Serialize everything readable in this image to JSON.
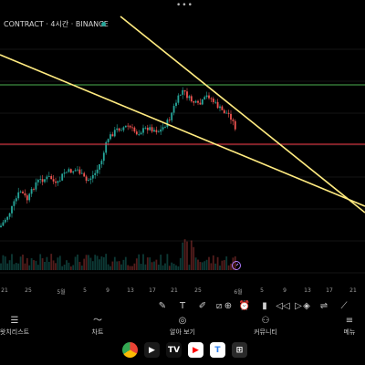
{
  "status_bar": {
    "more_dots": "•••"
  },
  "chart": {
    "symbol_label": "CONTRACT · 4시간 · BINANCE",
    "live_color": "#26a69a",
    "up_color": "#26a69a",
    "down_color": "#ef5350",
    "support_line_color": "#f23645",
    "resistance_line_color": "#4caf50",
    "trend_line_color": "#ffeb80",
    "alert_icon": "alarm-clock-icon"
  },
  "time_axis": {
    "labels": [
      "21",
      "25",
      "5월",
      "5",
      "9",
      "13",
      "17",
      "21",
      "25",
      "6월",
      "5",
      "9",
      "13",
      "17",
      "21"
    ]
  },
  "toolbar": {
    "tools": [
      "pencil-icon",
      "text-icon",
      "brush-icon",
      "ruler-icon",
      "plus-circle-icon",
      "alarm-icon",
      "candle-icon",
      "replay-icon",
      "forward-icon",
      "layers-icon",
      "compare-icon",
      "line-tool-icon"
    ]
  },
  "nav": {
    "items": [
      {
        "icon": "list-icon",
        "label": "왓치리스트"
      },
      {
        "icon": "chart-icon",
        "label": "차트"
      },
      {
        "icon": "compass-icon",
        "label": "알아 보기"
      },
      {
        "icon": "community-icon",
        "label": "커뮤니티"
      },
      {
        "icon": "menu-icon",
        "label": "메뉴"
      }
    ]
  },
  "dock": {
    "apps": [
      {
        "icon": "chrome-icon",
        "glyph": "",
        "color": "#ffffff"
      },
      {
        "icon": "play-store-icon",
        "glyph": "▶",
        "color": "#ffffff"
      },
      {
        "icon": "tradingview-icon",
        "glyph": "TV",
        "color": "#ffffff"
      },
      {
        "icon": "youtube-icon",
        "glyph": "▶",
        "color": "#ff0000"
      },
      {
        "icon": "toss-icon",
        "glyph": "T",
        "color": "#2f80ed"
      },
      {
        "icon": "grid-apps-icon",
        "glyph": "⊞",
        "color": "#ffffff"
      }
    ]
  }
}
